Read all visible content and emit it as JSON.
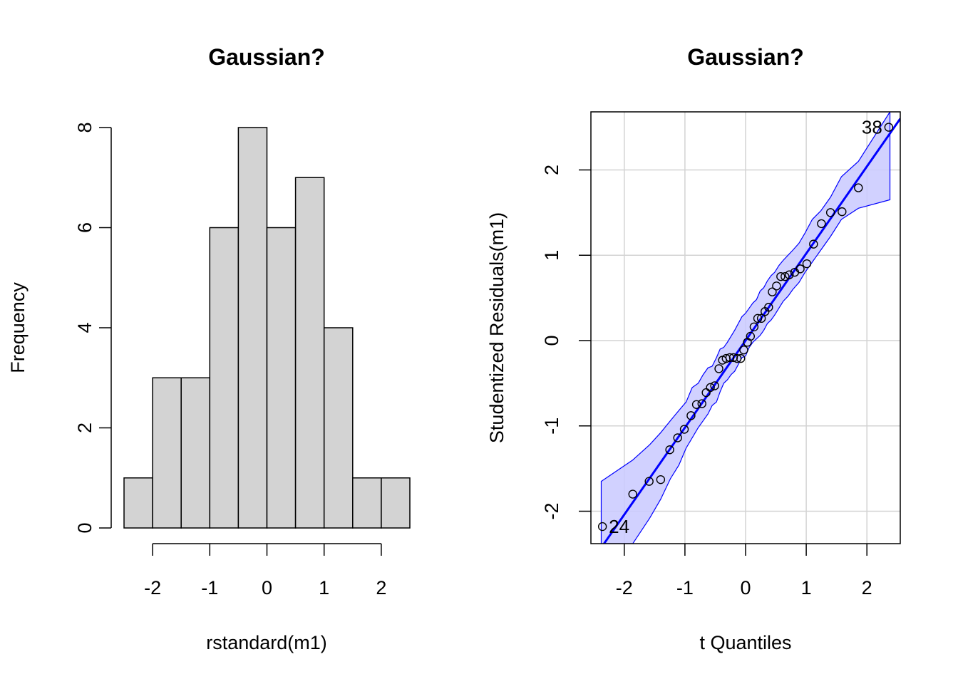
{
  "chart_data": [
    {
      "type": "bar",
      "title": "Gaussian?",
      "xlabel": "rstandard(m1)",
      "ylabel": "Frequency",
      "bins": [
        {
          "from": -2.5,
          "to": -2.0,
          "count": 1
        },
        {
          "from": -2.0,
          "to": -1.5,
          "count": 3
        },
        {
          "from": -1.5,
          "to": -1.0,
          "count": 3
        },
        {
          "from": -1.0,
          "to": -0.5,
          "count": 6
        },
        {
          "from": -0.5,
          "to": 0.0,
          "count": 8
        },
        {
          "from": 0.0,
          "to": 0.5,
          "count": 6
        },
        {
          "from": 0.5,
          "to": 1.0,
          "count": 7
        },
        {
          "from": 1.0,
          "to": 1.5,
          "count": 4
        },
        {
          "from": 1.5,
          "to": 2.0,
          "count": 1
        },
        {
          "from": 2.0,
          "to": 2.5,
          "count": 1
        }
      ],
      "xticks": [
        -2,
        -1,
        0,
        1,
        2
      ],
      "xtick_labels": [
        "-2",
        "-1",
        "0",
        "1",
        "2"
      ],
      "yticks": [
        0,
        2,
        4,
        6,
        8
      ],
      "ytick_labels": [
        "0",
        "2",
        "4",
        "6",
        "8"
      ],
      "xlim": [
        -2.5,
        2.5
      ],
      "ylim": [
        0,
        8
      ],
      "bar_color": "#D3D3D3"
    },
    {
      "type": "scatter",
      "title": "Gaussian?",
      "xlabel": "t Quantiles",
      "ylabel": "Studentized Residuals(m1)",
      "xlim": [
        -2.55,
        2.55
      ],
      "ylim": [
        -2.38,
        2.68
      ],
      "xticks": [
        -2,
        -1,
        0,
        1,
        2
      ],
      "xtick_labels": [
        "-2",
        "-1",
        "0",
        "1",
        "2"
      ],
      "yticks": [
        -2,
        -1,
        0,
        1,
        2
      ],
      "ytick_labels": [
        "-2",
        "-1",
        "0",
        "1",
        "2"
      ],
      "grid": true,
      "reference_line": {
        "intercept": 0.0,
        "slope": 1.02,
        "color": "#0000FF"
      },
      "envelope": {
        "fill": "#C9C9FF",
        "stroke": "#0000FF",
        "x": [
          -2.38,
          -1.86,
          -1.58,
          -1.4,
          -1.24,
          -1.1,
          -0.98,
          -0.88,
          -0.78,
          -0.7,
          -0.62,
          -0.55,
          -0.48,
          -0.42,
          -0.36,
          -0.3,
          -0.24,
          -0.18,
          -0.12,
          -0.06,
          0.0,
          0.06,
          0.12,
          0.18,
          0.24,
          0.3,
          0.36,
          0.42,
          0.48,
          0.55,
          0.62,
          0.7,
          0.78,
          0.88,
          0.98,
          1.1,
          1.24,
          1.4,
          1.58,
          1.86,
          2.38
        ],
        "upper": [
          -1.65,
          -1.4,
          -1.22,
          -1.08,
          -0.94,
          -0.82,
          -0.72,
          -0.55,
          -0.5,
          -0.4,
          -0.32,
          -0.3,
          -0.2,
          -0.1,
          -0.08,
          -0.02,
          0.05,
          0.12,
          0.2,
          0.28,
          0.32,
          0.38,
          0.44,
          0.48,
          0.58,
          0.62,
          0.7,
          0.76,
          0.8,
          0.88,
          0.94,
          1.0,
          1.06,
          1.14,
          1.26,
          1.42,
          1.52,
          1.68,
          1.92,
          2.1,
          2.68
        ],
        "lower": [
          -2.38,
          -2.38,
          -2.08,
          -1.86,
          -1.62,
          -1.46,
          -1.26,
          -1.14,
          -1.02,
          -0.94,
          -0.86,
          -0.76,
          -0.72,
          -0.6,
          -0.5,
          -0.46,
          -0.4,
          -0.36,
          -0.28,
          -0.2,
          -0.18,
          -0.08,
          -0.02,
          0.02,
          0.06,
          0.12,
          0.2,
          0.24,
          0.3,
          0.38,
          0.46,
          0.52,
          0.6,
          0.68,
          0.8,
          0.92,
          1.06,
          1.22,
          1.42,
          1.55,
          1.65
        ]
      },
      "points": [
        {
          "x": -2.36,
          "y": -2.18
        },
        {
          "x": -1.86,
          "y": -1.8
        },
        {
          "x": -1.59,
          "y": -1.65
        },
        {
          "x": -1.4,
          "y": -1.63
        },
        {
          "x": -1.25,
          "y": -1.28
        },
        {
          "x": -1.12,
          "y": -1.14
        },
        {
          "x": -1.01,
          "y": -1.04
        },
        {
          "x": -0.9,
          "y": -0.88
        },
        {
          "x": -0.81,
          "y": -0.75
        },
        {
          "x": -0.72,
          "y": -0.74
        },
        {
          "x": -0.65,
          "y": -0.61
        },
        {
          "x": -0.58,
          "y": -0.55
        },
        {
          "x": -0.51,
          "y": -0.53
        },
        {
          "x": -0.44,
          "y": -0.33
        },
        {
          "x": -0.38,
          "y": -0.23
        },
        {
          "x": -0.32,
          "y": -0.21
        },
        {
          "x": -0.26,
          "y": -0.2
        },
        {
          "x": -0.2,
          "y": -0.2
        },
        {
          "x": -0.14,
          "y": -0.21
        },
        {
          "x": -0.08,
          "y": -0.21
        },
        {
          "x": -0.03,
          "y": -0.11
        },
        {
          "x": 0.03,
          "y": -0.02
        },
        {
          "x": 0.08,
          "y": 0.05
        },
        {
          "x": 0.14,
          "y": 0.16
        },
        {
          "x": 0.2,
          "y": 0.26
        },
        {
          "x": 0.26,
          "y": 0.26
        },
        {
          "x": 0.32,
          "y": 0.34
        },
        {
          "x": 0.38,
          "y": 0.39
        },
        {
          "x": 0.44,
          "y": 0.57
        },
        {
          "x": 0.51,
          "y": 0.64
        },
        {
          "x": 0.58,
          "y": 0.75
        },
        {
          "x": 0.65,
          "y": 0.75
        },
        {
          "x": 0.72,
          "y": 0.77
        },
        {
          "x": 0.81,
          "y": 0.8
        },
        {
          "x": 0.9,
          "y": 0.84
        },
        {
          "x": 1.01,
          "y": 0.9
        },
        {
          "x": 1.12,
          "y": 1.13
        },
        {
          "x": 1.25,
          "y": 1.37
        },
        {
          "x": 1.4,
          "y": 1.5
        },
        {
          "x": 1.59,
          "y": 1.51
        },
        {
          "x": 1.86,
          "y": 1.79
        },
        {
          "x": 2.36,
          "y": 2.5
        }
      ],
      "labeled_points": [
        {
          "label": "24",
          "x": -2.36,
          "y": -2.18,
          "side": "right"
        },
        {
          "label": "38",
          "x": 2.36,
          "y": 2.5,
          "side": "left"
        }
      ]
    }
  ]
}
